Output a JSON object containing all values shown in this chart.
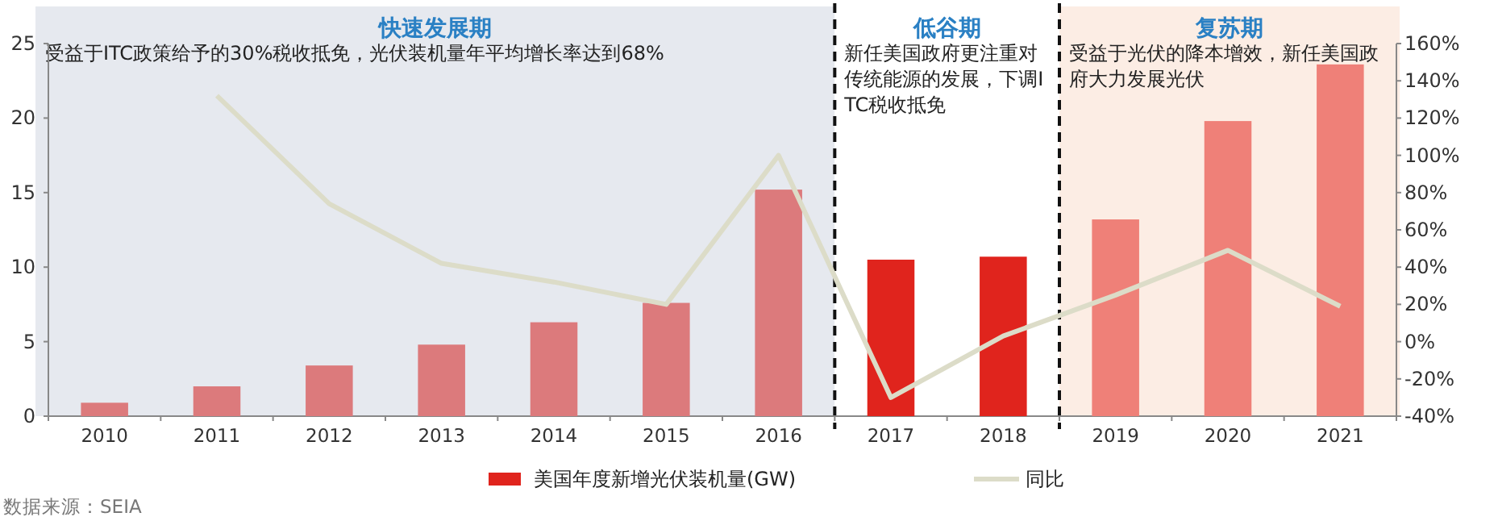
{
  "chart_data": {
    "type": "bar",
    "categories": [
      "2010",
      "2011",
      "2012",
      "2013",
      "2014",
      "2015",
      "2016",
      "2017",
      "2018",
      "2019",
      "2020",
      "2021"
    ],
    "series": [
      {
        "name": "美国年度新增光伏装机量(GW)",
        "color": "#e0241d",
        "colors": [
          "#dc7a7c",
          "#dc7a7c",
          "#dc7a7c",
          "#dc7a7c",
          "#dc7a7c",
          "#dc7a7c",
          "#dc7a7c",
          "#e0241d",
          "#e0241d",
          "#ef8078",
          "#ef8078",
          "#ef8078"
        ],
        "values": [
          0.9,
          2.0,
          3.4,
          4.8,
          6.3,
          7.6,
          15.2,
          10.5,
          10.7,
          13.2,
          19.8,
          23.6
        ]
      },
      {
        "name": "同比",
        "type": "line",
        "axis": "y2",
        "color": "#dcdcc8",
        "values": [
          null,
          132,
          74,
          42,
          32,
          20,
          100,
          -30,
          3,
          25,
          49,
          19
        ]
      }
    ],
    "ylim": [
      0,
      25
    ],
    "yticks": [
      0,
      5,
      10,
      15,
      20,
      25
    ],
    "y2lim": [
      -40,
      160
    ],
    "y2ticks": [
      {
        "value": -40,
        "label": "-40%"
      },
      {
        "value": -20,
        "label": "-20%"
      },
      {
        "value": 0,
        "label": "0%"
      },
      {
        "value": 20,
        "label": "20%"
      },
      {
        "value": 40,
        "label": "40%"
      },
      {
        "value": 60,
        "label": "60%"
      },
      {
        "value": 80,
        "label": "80%"
      },
      {
        "value": 100,
        "label": "100%"
      },
      {
        "value": 120,
        "label": "120%"
      },
      {
        "value": 140,
        "label": "140%"
      },
      {
        "value": 160,
        "label": "160%"
      }
    ],
    "bands": [
      {
        "axis": "x",
        "from": "2010",
        "to": "2016",
        "label": "快速发展期",
        "color": "#e6e9ef"
      },
      {
        "axis": "x",
        "from": "2017",
        "to": "2018",
        "label": "低谷期",
        "color": "#ffffff"
      },
      {
        "axis": "x",
        "from": "2019",
        "to": "2021",
        "label": "复苏期",
        "color": "#fcede4"
      }
    ],
    "annotations": [
      "受益于ITC政策给予的30%税收抵免，光伏装机量年平均增长率达到68%",
      "新任美国政府更注重对传统能源的发展，下调ITC税收抵免",
      "受益于光伏的降本增效，新任美国政府大力发展光伏",
      "数据来源：SEIA"
    ],
    "legend": "bottom",
    "grid": false,
    "marker": "none",
    "line_style": "solid"
  }
}
